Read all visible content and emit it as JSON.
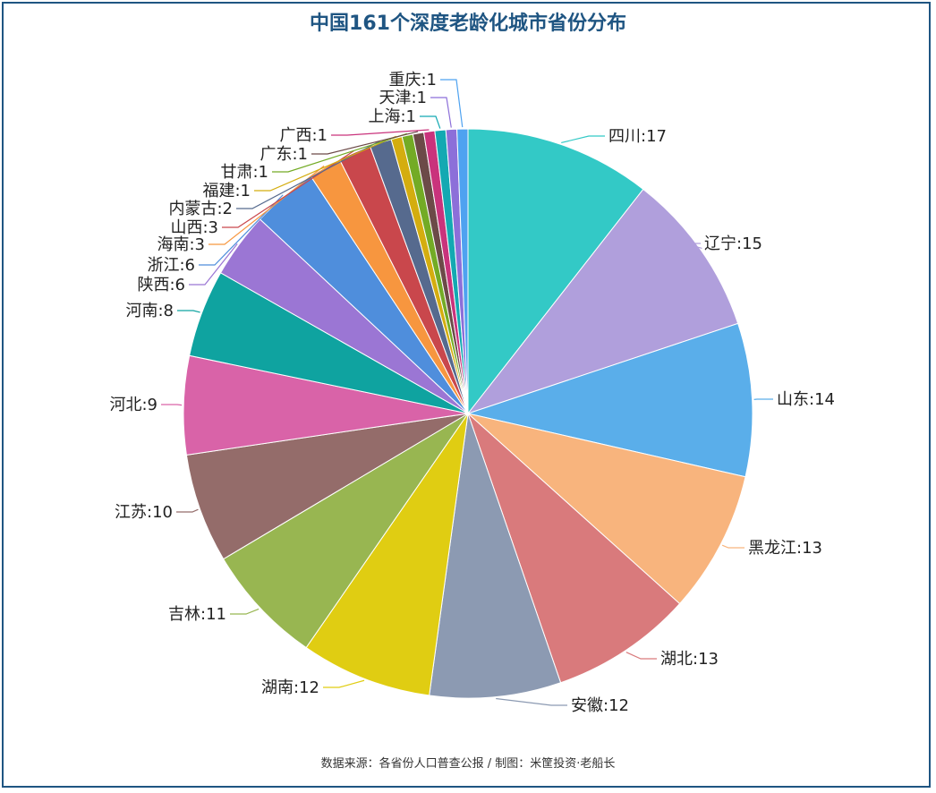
{
  "title": "中国161个深度老龄化城市省份分布",
  "source": "数据来源：各省份人口普查公报 / 制图：米筐投资·老船长",
  "chart_data": {
    "type": "pie",
    "title": "中国161个深度老龄化城市省份分布",
    "slices": [
      {
        "label": "四川",
        "value": 17,
        "color": "#33c9c6"
      },
      {
        "label": "辽宁",
        "value": 15,
        "color": "#b09fdc"
      },
      {
        "label": "山东",
        "value": 14,
        "color": "#5aaeea"
      },
      {
        "label": "黑龙江",
        "value": 13,
        "color": "#f8b47d"
      },
      {
        "label": "湖北",
        "value": 13,
        "color": "#d97a7c"
      },
      {
        "label": "安徽",
        "value": 12,
        "color": "#8c9ab2"
      },
      {
        "label": "湖南",
        "value": 12,
        "color": "#e0cd12"
      },
      {
        "label": "吉林",
        "value": 11,
        "color": "#98b651"
      },
      {
        "label": "江苏",
        "value": 10,
        "color": "#946c6a"
      },
      {
        "label": "河北",
        "value": 9,
        "color": "#d963a8"
      },
      {
        "label": "河南",
        "value": 8,
        "color": "#0fa3a0"
      },
      {
        "label": "陕西",
        "value": 6,
        "color": "#9b76d4"
      },
      {
        "label": "浙江",
        "value": 6,
        "color": "#4f8edc"
      },
      {
        "label": "海南",
        "value": 3,
        "color": "#f7963f"
      },
      {
        "label": "山西",
        "value": 3,
        "color": "#c9474c"
      },
      {
        "label": "内蒙古",
        "value": 2,
        "color": "#566a8e"
      },
      {
        "label": "福建",
        "value": 1,
        "color": "#d4ad0f"
      },
      {
        "label": "甘肃",
        "value": 1,
        "color": "#73ab25"
      },
      {
        "label": "广东",
        "value": 1,
        "color": "#6c4a48"
      },
      {
        "label": "广西",
        "value": 1,
        "color": "#c9337c"
      },
      {
        "label": "上海",
        "value": 1,
        "color": "#13a9b2"
      },
      {
        "label": "天津",
        "value": 1,
        "color": "#8c6fd9"
      },
      {
        "label": "重庆",
        "value": 1,
        "color": "#4ea2f0"
      }
    ]
  }
}
